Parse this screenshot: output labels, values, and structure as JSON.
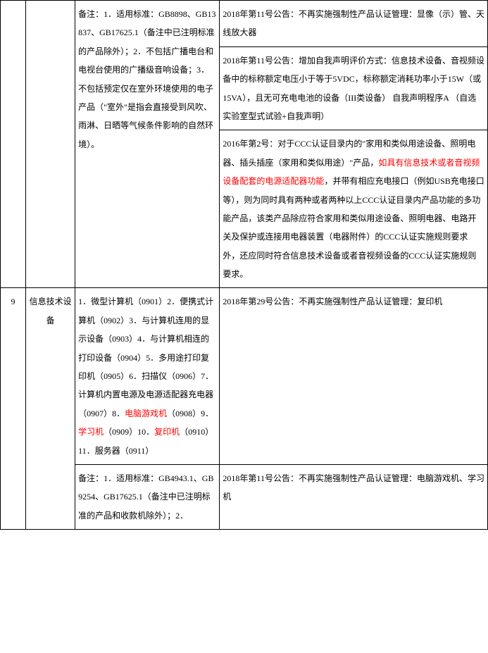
{
  "row8_note": "备注：1．适用标准：GB8898、GB13837、GB17625.1（备注中已注明标准的产品除外）；2．不包括广播电台和电视台使用的广播级音响设备；3．不包括预定仅在室外环境使用的电子产品（\"室外\"是指会直接受到风吹、雨淋、日晒等气候条件影响的自然环境）。",
  "row8_right1": "2018年第11号公告：不再实施强制性产品认证管理：显像（示）管、天线放大器",
  "row8_right2": "2018年第11号公告：增加自我声明评价方式：信息技术设备、音视频设备中的标称额定电压小于等于5VDC，标称额定消耗功率小于15W（或15VA），且无可充电电池的设备（III类设备）  自我声明程序A  （自选实验室型式试验+自我声明）",
  "row8_right3a": "2016年第2号：对于CCC认证目录内的\"家用和类似用途设备、照明电器、插头插座（家用和类似用途）\"产品，",
  "row8_right3b": "如具有信息技术或者音视频设备配套的电源适配器功能",
  "row8_right3c": "，并带有相应充电接口（例如USB充电接口等），则为同时具有两种或者两种以上CCC认证目录内产品功能的多功能产品，该类产品除应符合家用和类似用途设备、照明电器、电路开关及保护或连接用电器装置（电器附件）的CCC认证实施规则要求外，还应同时符合信息技术设备或者音视频设备的CCC认证实施规则要求。",
  "row9_num": "9",
  "row9_cat": "信息技术设备",
  "row9_desc_a": "1．微型计算机（0901）2．便携式计算机（0902）3．与计算机连用的显示设备（0903）4．与计算机相连的打印设备（0904）5．多用途打印复印机（0905）6．扫描仪（0906）7．计算机内置电源及电源适配器充电器（0907）8．",
  "row9_desc_b": "电脑游戏机",
  "row9_desc_c": "（0908）9．",
  "row9_desc_d": "学习机",
  "row9_desc_e": "（0909）10．",
  "row9_desc_f": "复印机",
  "row9_desc_g": "（0910）11．服务器（0911）",
  "row9_right": "2018年第29号公告：不再实施强制性产品认证管理：复印机",
  "row9b_note": "备注：1．适用标准：GB4943.1、GB9254、GB17625.1（备注中已注明标准的产品和收款机除外）；2．",
  "row9b_right": "2018年第11号公告：不再实施强制性产品认证管理：电脑游戏机、学习机"
}
